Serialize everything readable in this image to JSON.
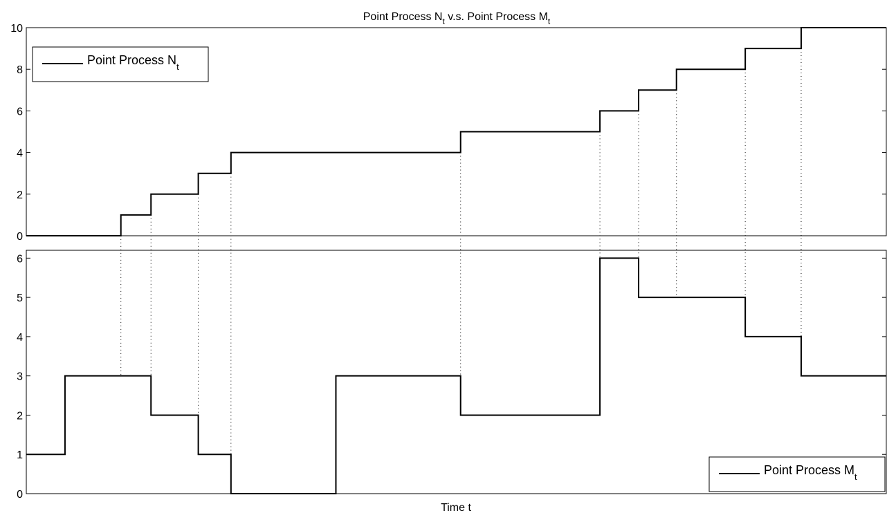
{
  "title": {
    "main": "Point Process N",
    "sub": "t",
    "mid": " v.s. Point Process M",
    "sub2": "t"
  },
  "xlabel": "Time t",
  "colors": {
    "line": "#000000",
    "axes": "#000000",
    "guide": "#000000",
    "background": "#ffffff"
  },
  "chart_data": [
    {
      "type": "line",
      "step": "post",
      "xlim": [
        0,
        100
      ],
      "ylim": [
        0,
        10
      ],
      "yticks": [
        0,
        2,
        4,
        6,
        8,
        10
      ],
      "xticks": [],
      "grid": false,
      "legend_position": "top-left",
      "series": [
        {
          "name": "Point Process N",
          "name_sub": "t",
          "x": [
            0,
            11,
            14.5,
            20,
            23.8,
            50.5,
            66.7,
            71.2,
            75.6,
            83.6,
            90.1,
            100
          ],
          "y": [
            0,
            1,
            2,
            3,
            4,
            5,
            6,
            7,
            8,
            9,
            10,
            10
          ]
        }
      ]
    },
    {
      "type": "line",
      "step": "post",
      "xlim": [
        0,
        100
      ],
      "ylim": [
        0,
        6.2
      ],
      "yticks": [
        0,
        1,
        2,
        3,
        4,
        5,
        6
      ],
      "xticks": [],
      "grid": false,
      "legend_position": "bottom-right",
      "series": [
        {
          "name": "Point Process M",
          "name_sub": "t",
          "x": [
            0,
            4.5,
            14.5,
            20,
            23.8,
            36,
            50.5,
            66.7,
            71.2,
            83.6,
            90.1,
            100
          ],
          "y": [
            1,
            3,
            2,
            1,
            0,
            3,
            2,
            6,
            5,
            4,
            3,
            3
          ]
        }
      ]
    }
  ],
  "event_times": [
    11,
    14.5,
    20,
    23.8,
    50.5,
    66.7,
    71.2,
    75.6,
    83.6,
    90.1
  ]
}
